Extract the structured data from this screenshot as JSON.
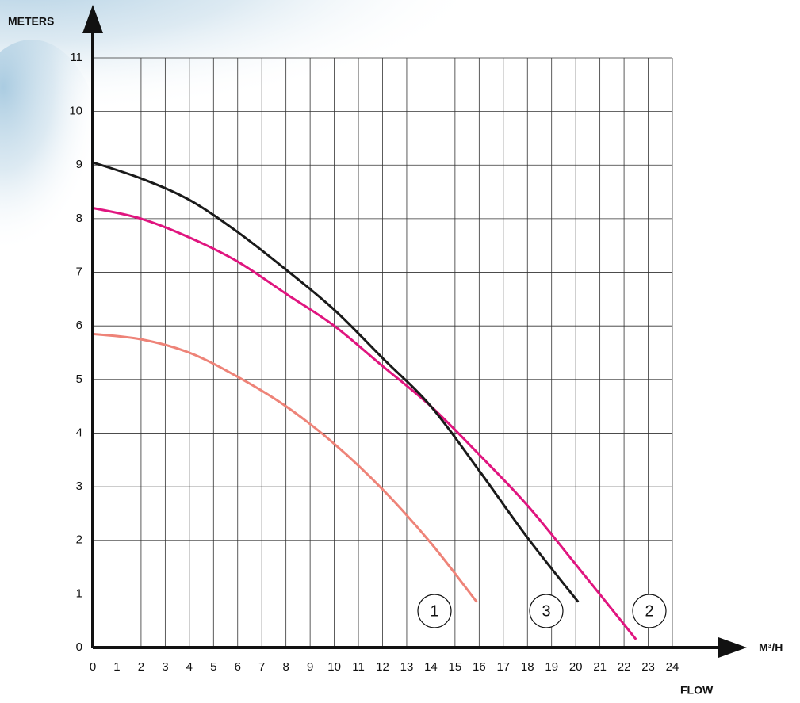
{
  "chart_data": {
    "type": "line",
    "y_label": "METERS",
    "x_label": "M³/H",
    "x_title": "FLOW",
    "xlim": [
      0,
      24
    ],
    "ylim": [
      0,
      11
    ],
    "xticks": [
      0,
      1,
      2,
      3,
      4,
      5,
      6,
      7,
      8,
      9,
      10,
      11,
      12,
      13,
      14,
      15,
      16,
      17,
      18,
      19,
      20,
      21,
      22,
      23,
      24
    ],
    "yticks": [
      0,
      1,
      2,
      3,
      4,
      5,
      6,
      7,
      8,
      9,
      10,
      11
    ],
    "grid": true,
    "series": [
      {
        "name": "1",
        "color": "#ee8378",
        "x": [
          0,
          2,
          4,
          6,
          8,
          10,
          12,
          14,
          15.9
        ],
        "values": [
          5.85,
          5.75,
          5.5,
          5.05,
          4.5,
          3.8,
          2.95,
          1.95,
          0.85
        ]
      },
      {
        "name": "2",
        "color": "#e0157f",
        "x": [
          0,
          2,
          4,
          6,
          8,
          10,
          12,
          14,
          16,
          18,
          20,
          22.5
        ],
        "values": [
          8.2,
          8.0,
          7.65,
          7.2,
          6.6,
          6.0,
          5.25,
          4.5,
          3.6,
          2.65,
          1.55,
          0.15
        ]
      },
      {
        "name": "3",
        "color": "#1a1a1a",
        "x": [
          0,
          2,
          4,
          6,
          8,
          10,
          12,
          14,
          16,
          18,
          20.1
        ],
        "values": [
          9.05,
          8.75,
          8.35,
          7.75,
          7.05,
          6.3,
          5.4,
          4.5,
          3.3,
          2.05,
          0.85
        ]
      }
    ]
  }
}
